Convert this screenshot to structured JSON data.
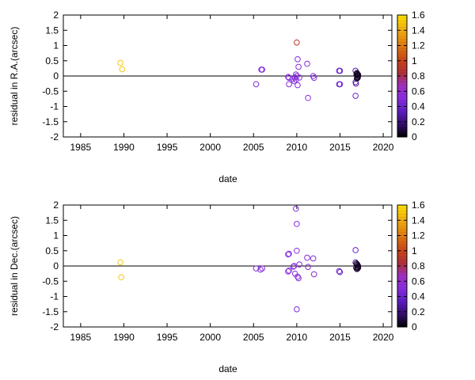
{
  "chart_data": [
    {
      "type": "scatter",
      "title": "",
      "xlabel": "date",
      "ylabel": "residual in R.A.(arcsec)",
      "xlim": [
        1983,
        2021
      ],
      "ylim": [
        -2,
        2
      ],
      "xticks": [
        "1985",
        "1990",
        "1995",
        "2000",
        "2005",
        "2010",
        "2015",
        "2020"
      ],
      "yticks": [
        "-2",
        "-1.5",
        "-1",
        "-0.5",
        "0",
        "0.5",
        "1",
        "1.5",
        "2"
      ],
      "reference_line_y": 0,
      "colorbar": {
        "min": 0,
        "max": 1.6,
        "ticks": [
          "0",
          "0.2",
          "0.4",
          "0.6",
          "0.8",
          "1",
          "1.2",
          "1.4",
          "1.6"
        ]
      },
      "points": [
        {
          "x": 1989.6,
          "y": 0.43,
          "c": 1.5
        },
        {
          "x": 1989.8,
          "y": 0.22,
          "c": 1.5
        },
        {
          "x": 2005.3,
          "y": -0.27,
          "c": 0.5
        },
        {
          "x": 2005.9,
          "y": 0.21,
          "c": 0.5
        },
        {
          "x": 2006.0,
          "y": 0.21,
          "c": 0.5
        },
        {
          "x": 2009.0,
          "y": -0.03,
          "c": 0.5
        },
        {
          "x": 2009.1,
          "y": -0.06,
          "c": 0.5
        },
        {
          "x": 2009.1,
          "y": -0.27,
          "c": 0.5
        },
        {
          "x": 2009.5,
          "y": -0.1,
          "c": 0.5
        },
        {
          "x": 2009.7,
          "y": -0.17,
          "c": 0.5
        },
        {
          "x": 2009.8,
          "y": -0.05,
          "c": 0.5
        },
        {
          "x": 2009.9,
          "y": 0.05,
          "c": 0.5
        },
        {
          "x": 2009.9,
          "y": -0.12,
          "c": 0.5
        },
        {
          "x": 2010.0,
          "y": 1.1,
          "c": 0.9
        },
        {
          "x": 2010.0,
          "y": 0.0,
          "c": 0.5
        },
        {
          "x": 2010.1,
          "y": -0.3,
          "c": 0.5
        },
        {
          "x": 2010.1,
          "y": 0.55,
          "c": 0.5
        },
        {
          "x": 2010.2,
          "y": 0.3,
          "c": 0.5
        },
        {
          "x": 2010.3,
          "y": -0.05,
          "c": 0.5
        },
        {
          "x": 2011.2,
          "y": 0.4,
          "c": 0.5
        },
        {
          "x": 2011.3,
          "y": -0.72,
          "c": 0.5
        },
        {
          "x": 2011.9,
          "y": 0.0,
          "c": 0.5
        },
        {
          "x": 2012.0,
          "y": -0.06,
          "c": 0.5
        },
        {
          "x": 2014.9,
          "y": 0.17,
          "c": 0.4
        },
        {
          "x": 2015.0,
          "y": 0.17,
          "c": 0.4
        },
        {
          "x": 2014.9,
          "y": -0.27,
          "c": 0.4
        },
        {
          "x": 2015.0,
          "y": -0.27,
          "c": 0.4
        },
        {
          "x": 2016.8,
          "y": 0.17,
          "c": 0.3
        },
        {
          "x": 2016.8,
          "y": -0.65,
          "c": 0.4
        },
        {
          "x": 2016.8,
          "y": -0.2,
          "c": 0.3
        },
        {
          "x": 2016.85,
          "y": -0.25,
          "c": 0.3
        },
        {
          "x": 2016.9,
          "y": 0.05,
          "c": 0.05
        },
        {
          "x": 2016.95,
          "y": 0.1,
          "c": 0.05
        },
        {
          "x": 2017.0,
          "y": 0.02,
          "c": 0.05
        },
        {
          "x": 2017.05,
          "y": -0.03,
          "c": 0.05
        },
        {
          "x": 2017.1,
          "y": 0.0,
          "c": 0.05
        },
        {
          "x": 2016.95,
          "y": -0.08,
          "c": 0.05
        },
        {
          "x": 2017.0,
          "y": 0.07,
          "c": 0.05
        },
        {
          "x": 2017.05,
          "y": -0.06,
          "c": 0.05
        },
        {
          "x": 2017.1,
          "y": 0.04,
          "c": 0.05
        }
      ]
    },
    {
      "type": "scatter",
      "title": "",
      "xlabel": "date",
      "ylabel": "residual in Dec.(arcsec)",
      "xlim": [
        1983,
        2021
      ],
      "ylim": [
        -2,
        2
      ],
      "xticks": [
        "1985",
        "1990",
        "1995",
        "2000",
        "2005",
        "2010",
        "2015",
        "2020"
      ],
      "yticks": [
        "-2",
        "-1.5",
        "-1",
        "-0.5",
        "0",
        "0.5",
        "1",
        "1.5",
        "2"
      ],
      "reference_line_y": 0,
      "colorbar": {
        "min": 0,
        "max": 1.6,
        "ticks": [
          "0",
          "0.2",
          "0.4",
          "0.6",
          "0.8",
          "1",
          "1.2",
          "1.4",
          "1.6"
        ]
      },
      "points": [
        {
          "x": 1989.6,
          "y": 0.12,
          "c": 1.5
        },
        {
          "x": 1989.7,
          "y": -0.37,
          "c": 1.5
        },
        {
          "x": 2005.3,
          "y": -0.08,
          "c": 0.5
        },
        {
          "x": 2005.8,
          "y": -0.12,
          "c": 0.5
        },
        {
          "x": 2006.0,
          "y": -0.08,
          "c": 0.5
        },
        {
          "x": 2009.0,
          "y": 0.38,
          "c": 0.5
        },
        {
          "x": 2009.1,
          "y": 0.4,
          "c": 0.5
        },
        {
          "x": 2009.0,
          "y": -0.18,
          "c": 0.5
        },
        {
          "x": 2009.1,
          "y": -0.15,
          "c": 0.5
        },
        {
          "x": 2009.6,
          "y": -0.02,
          "c": 0.5
        },
        {
          "x": 2009.7,
          "y": 0.0,
          "c": 0.5
        },
        {
          "x": 2009.8,
          "y": -0.25,
          "c": 0.5
        },
        {
          "x": 2009.9,
          "y": 1.88,
          "c": 0.5
        },
        {
          "x": 2010.0,
          "y": 1.38,
          "c": 0.5
        },
        {
          "x": 2010.0,
          "y": 0.5,
          "c": 0.5
        },
        {
          "x": 2010.1,
          "y": -0.35,
          "c": 0.5
        },
        {
          "x": 2010.2,
          "y": -0.4,
          "c": 0.5
        },
        {
          "x": 2010.0,
          "y": -1.42,
          "c": 0.5
        },
        {
          "x": 2010.3,
          "y": 0.05,
          "c": 0.5
        },
        {
          "x": 2011.2,
          "y": 0.27,
          "c": 0.5
        },
        {
          "x": 2011.3,
          "y": -0.03,
          "c": 0.5
        },
        {
          "x": 2011.9,
          "y": 0.25,
          "c": 0.5
        },
        {
          "x": 2012.0,
          "y": -0.27,
          "c": 0.5
        },
        {
          "x": 2014.9,
          "y": -0.17,
          "c": 0.4
        },
        {
          "x": 2015.0,
          "y": -0.2,
          "c": 0.4
        },
        {
          "x": 2016.8,
          "y": 0.52,
          "c": 0.4
        },
        {
          "x": 2016.8,
          "y": 0.12,
          "c": 0.3
        },
        {
          "x": 2016.85,
          "y": -0.05,
          "c": 0.3
        },
        {
          "x": 2016.9,
          "y": 0.08,
          "c": 0.05
        },
        {
          "x": 2016.95,
          "y": 0.02,
          "c": 0.05
        },
        {
          "x": 2017.0,
          "y": -0.03,
          "c": 0.05
        },
        {
          "x": 2017.05,
          "y": -0.08,
          "c": 0.05
        },
        {
          "x": 2017.1,
          "y": 0.0,
          "c": 0.05
        },
        {
          "x": 2016.95,
          "y": -0.1,
          "c": 0.05
        },
        {
          "x": 2017.0,
          "y": 0.05,
          "c": 0.05
        },
        {
          "x": 2017.1,
          "y": -0.05,
          "c": 0.05
        }
      ]
    }
  ]
}
